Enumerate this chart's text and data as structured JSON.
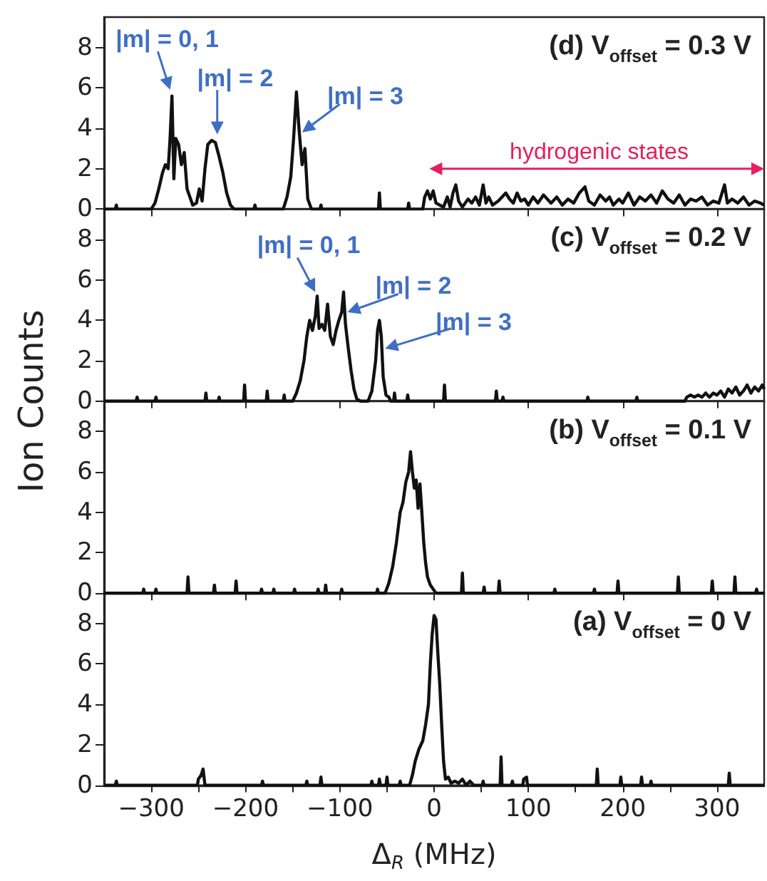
{
  "chart_data": [
    {
      "type": "line",
      "title": "(d) V$_{offset}$ = 0.3 V",
      "xlim": [
        -350,
        350
      ],
      "ylim": [
        0,
        9.5
      ],
      "yticks": [
        0,
        2,
        4,
        6,
        8
      ],
      "tick_labels": "y",
      "xticks": [
        {
          "value": -300,
          "label": null
        },
        {
          "value": -200,
          "label": null
        },
        {
          "value": -100,
          "label": null
        },
        {
          "value": 0,
          "label": null
        },
        {
          "value": 100,
          "label": null
        },
        {
          "value": 200,
          "label": null
        },
        {
          "value": 300,
          "label": null
        }
      ],
      "annotations": [
        {
          "text": "|m| = 0, 1",
          "x": -278,
          "y": 5.6
        },
        {
          "text": "|m| = 2",
          "x": -230,
          "y": 3.4
        },
        {
          "text": "|m| = 3",
          "x": -141,
          "y": 3.6
        },
        "hydrogenic states"
      ],
      "series": [
        {
          "color": "#111111",
          "x": [
            -350,
            -338,
            -337,
            -336,
            -300,
            -296,
            -292,
            -288,
            -285,
            -282,
            -280,
            -278,
            -276,
            -274,
            -271,
            -268,
            -265,
            -262,
            -259,
            -256,
            -252,
            -249,
            -246,
            -243,
            -240,
            -236,
            -232,
            -228,
            -224,
            -220,
            -216,
            -212,
            -191,
            -190,
            -189,
            -160,
            -156,
            -152,
            -149,
            -146,
            -143,
            -140,
            -137,
            -134,
            -130,
            -121,
            -120,
            -119,
            -59,
            -58,
            -57,
            -28,
            -27,
            -26,
            -12,
            -10,
            -7,
            -4,
            -1,
            2,
            6,
            10,
            14,
            17,
            20,
            23,
            26,
            30,
            36,
            40,
            44,
            48,
            52,
            55,
            58,
            62,
            68,
            72,
            76,
            80,
            84,
            88,
            92,
            96,
            100,
            105,
            110,
            116,
            120,
            124,
            130,
            136,
            142,
            148,
            154,
            160,
            164,
            170,
            176,
            182,
            186,
            190,
            196,
            200,
            206,
            212,
            218,
            224,
            230,
            236,
            242,
            248,
            254,
            260,
            266,
            272,
            278,
            284,
            290,
            296,
            302,
            308,
            311,
            316,
            322,
            328,
            334,
            340,
            346,
            350
          ],
          "values": [
            0,
            0,
            0.2,
            0,
            0,
            0.3,
            1,
            1.8,
            2.2,
            2,
            3.5,
            5.6,
            1.5,
            3.5,
            3.2,
            2.2,
            2.8,
            1,
            0.6,
            0.2,
            0.3,
            1,
            0.4,
            2,
            3.2,
            3.4,
            3.3,
            2.6,
            1.8,
            0.8,
            0.2,
            0,
            0,
            0.2,
            0,
            0,
            0.6,
            1.6,
            3.5,
            5.8,
            3.8,
            2.2,
            3,
            0.5,
            0,
            0,
            0.2,
            0,
            0,
            0.8,
            0,
            0,
            0.3,
            0,
            0,
            0.6,
            0.9,
            0.5,
            0.9,
            0.3,
            0.2,
            0.1,
            0.6,
            0.1,
            0.8,
            1.2,
            0.4,
            0.1,
            0.5,
            0.3,
            0.6,
            0.2,
            1.2,
            0.3,
            0.6,
            0.2,
            0.4,
            0.6,
            0.8,
            0.5,
            0.3,
            0.8,
            0.4,
            0.5,
            0.2,
            0.6,
            0.3,
            0.7,
            0.5,
            0.3,
            0.6,
            0.2,
            0.5,
            0.3,
            0.8,
            1.1,
            0.4,
            0.2,
            0.7,
            0.4,
            0.6,
            0.2,
            0.5,
            0.3,
            0.8,
            0.2,
            0.6,
            0.4,
            0.7,
            0.3,
            0.9,
            0.5,
            0.3,
            0.7,
            0.2,
            0.5,
            0.4,
            0.6,
            0.2,
            0.4,
            0.3,
            1.2,
            0.3,
            0.5,
            0.3,
            0.6,
            0.2,
            0.4,
            0.3,
            0.2
          ]
        }
      ]
    },
    {
      "type": "line",
      "title": "(c) V$_{offset}$ = 0.2 V",
      "ylabel": "Ion Counts",
      "xlim": [
        -350,
        350
      ],
      "ylim": [
        0,
        9.5
      ],
      "yticks": [
        0,
        2,
        4,
        6,
        8
      ],
      "tick_labels": "y",
      "xticks": [
        {
          "value": -300,
          "label": null
        },
        {
          "value": -200,
          "label": null
        },
        {
          "value": -100,
          "label": null
        },
        {
          "value": 0,
          "label": null
        },
        {
          "value": 100,
          "label": null
        },
        {
          "value": 200,
          "label": null
        },
        {
          "value": 300,
          "label": null
        }
      ],
      "annotations": [
        {
          "text": "|m| = 0, 1",
          "x": -124,
          "y": 5.2
        },
        {
          "text": "|m| = 2",
          "x": -94,
          "y": 4.2
        },
        {
          "text": "|m| = 3",
          "x": -56,
          "y": 2.5
        }
      ],
      "series": [
        {
          "color": "#111111",
          "x": [
            -350,
            -316,
            -315,
            -314,
            -296,
            -295,
            -294,
            -243,
            -242,
            -241,
            -229,
            -228,
            -227,
            -202,
            -201,
            -200,
            -178,
            -177,
            -176,
            -160,
            -159,
            -158,
            -150,
            -146,
            -142,
            -138,
            -135,
            -132,
            -129,
            -126,
            -124,
            -122,
            -119,
            -116,
            -113,
            -110,
            -107,
            -104,
            -101,
            -98,
            -96,
            -94,
            -91,
            -88,
            -85,
            -82,
            -78,
            -70,
            -66,
            -62,
            -60,
            -58,
            -56,
            -54,
            -51,
            -48,
            -46,
            -43,
            -42,
            -41,
            -29,
            -28,
            -27,
            10,
            11,
            12,
            65,
            66,
            67,
            72,
            73,
            74,
            162,
            163,
            164,
            214,
            215,
            216,
            266,
            268,
            272,
            276,
            280,
            284,
            288,
            292,
            296,
            300,
            304,
            308,
            312,
            316,
            320,
            324,
            328,
            332,
            336,
            340,
            344,
            348,
            350
          ],
          "values": [
            0,
            0,
            0.2,
            0,
            0,
            0.2,
            0,
            0,
            0.4,
            0,
            0,
            0.2,
            0,
            0,
            0.8,
            0,
            0,
            0.5,
            0,
            0,
            0.3,
            0,
            0,
            0.4,
            1,
            2,
            3.2,
            4,
            3.5,
            4.2,
            5.2,
            3.6,
            3.8,
            3.5,
            4.8,
            3.2,
            2.8,
            3.5,
            4,
            4.4,
            5.4,
            3.8,
            2.6,
            1.5,
            0.6,
            0.1,
            0,
            0,
            0.5,
            2,
            3.5,
            4,
            3.2,
            1.2,
            0.3,
            0.2,
            0,
            0,
            0.4,
            0,
            0,
            0.3,
            0,
            0,
            0.8,
            0,
            0,
            0.5,
            0,
            0,
            0.2,
            0,
            0,
            0.2,
            0,
            0,
            0.2,
            0,
            0,
            0.2,
            0.3,
            0.2,
            0.3,
            0.2,
            0.4,
            0.2,
            0.4,
            0.3,
            0.5,
            0.2,
            0.6,
            0.4,
            0.7,
            0.3,
            0.5,
            0.8,
            0.4,
            0.7,
            0.5,
            0.8,
            0.6
          ]
        }
      ]
    },
    {
      "type": "line",
      "title": "(b) V$_{offset}$ = 0.1 V",
      "xlim": [
        -350,
        350
      ],
      "ylim": [
        0,
        9.5
      ],
      "yticks": [
        0,
        2,
        4,
        6,
        8
      ],
      "tick_labels": "y",
      "xticks": [
        {
          "value": -300,
          "label": null
        },
        {
          "value": -200,
          "label": null
        },
        {
          "value": -100,
          "label": null
        },
        {
          "value": 0,
          "label": null
        },
        {
          "value": 100,
          "label": null
        },
        {
          "value": 200,
          "label": null
        },
        {
          "value": 300,
          "label": null
        }
      ],
      "series": [
        {
          "color": "#111111",
          "x": [
            -350,
            -309,
            -308,
            -307,
            -296,
            -295,
            -294,
            -262,
            -261,
            -260,
            -234,
            -233,
            -232,
            -211,
            -210,
            -209,
            -184,
            -183,
            -182,
            -171,
            -170,
            -169,
            -149,
            -148,
            -147,
            -124,
            -123,
            -122,
            -116,
            -115,
            -114,
            -99,
            -98,
            -97,
            -61,
            -60,
            -59,
            -52,
            -48,
            -44,
            -40,
            -36,
            -33,
            -30,
            -27,
            -25,
            -23,
            -21,
            -19,
            -17,
            -15,
            -13,
            -11,
            -9,
            -7,
            -4,
            -1,
            2,
            29,
            30,
            31,
            52,
            53,
            54,
            68,
            69,
            70,
            127,
            128,
            129,
            169,
            170,
            171,
            194,
            195,
            196,
            258,
            259,
            260,
            294,
            295,
            296,
            318,
            319,
            320,
            341,
            342,
            343,
            350
          ],
          "values": [
            0,
            0,
            0.2,
            0,
            0,
            0.2,
            0,
            0,
            0.8,
            0,
            0,
            0.4,
            0,
            0,
            0.6,
            0,
            0,
            0.2,
            0,
            0,
            0.2,
            0,
            0,
            0.2,
            0,
            0,
            0.2,
            0,
            0,
            0.4,
            0,
            0,
            0.2,
            0,
            0,
            0.2,
            0,
            0,
            0.5,
            1.3,
            2.5,
            4,
            4.5,
            5.5,
            6,
            7,
            6,
            5.2,
            5.6,
            4.2,
            5.4,
            4,
            2.5,
            1.5,
            0.8,
            0.4,
            0.2,
            0,
            0,
            1,
            0,
            0,
            0.3,
            0,
            0,
            0.6,
            0,
            0,
            0.2,
            0,
            0,
            0.2,
            0,
            0,
            0.6,
            0,
            0,
            0.8,
            0,
            0,
            0.6,
            0,
            0,
            0.8,
            0,
            0,
            0.2,
            0,
            0
          ]
        }
      ]
    },
    {
      "type": "line",
      "title": "(a) V$_{offset}$ = 0 V",
      "xlabel": "Δ$_{R}$ (MHz)",
      "xlim": [
        -350,
        350
      ],
      "ylim": [
        0,
        9.5
      ],
      "yticks": [
        0,
        2,
        4,
        6,
        8
      ],
      "xticks": [
        {
          "value": -300,
          "label": "−300"
        },
        {
          "value": -250,
          "label": null
        },
        {
          "value": -200,
          "label": "−200"
        },
        {
          "value": -150,
          "label": null
        },
        {
          "value": -100,
          "label": "−100"
        },
        {
          "value": -50,
          "label": null
        },
        0,
        {
          "value": 50,
          "label": null
        },
        100,
        {
          "value": 150,
          "label": null
        },
        200,
        {
          "value": 250,
          "label": null
        },
        300
      ],
      "series": [
        {
          "color": "#111111",
          "x": [
            -350,
            -338,
            -337,
            -336,
            -251,
            -250,
            -247,
            -245,
            -243,
            -183,
            -182,
            -181,
            -136,
            -135,
            -134,
            -121,
            -120,
            -119,
            -67,
            -66,
            -65,
            -59,
            -58,
            -57,
            -51,
            -50,
            -49,
            -37,
            -36,
            -35,
            -26,
            -23,
            -20,
            -16,
            -12,
            -9,
            -6,
            -4,
            -2,
            0,
            2,
            4,
            6,
            8,
            10,
            12,
            15,
            18,
            22,
            26,
            30,
            34,
            38,
            42,
            51,
            52,
            53,
            70,
            71,
            72,
            82,
            83,
            84,
            94,
            95,
            98,
            99,
            172,
            173,
            174,
            197,
            198,
            199,
            219,
            220,
            221,
            229,
            230,
            231,
            312,
            313,
            314,
            350
          ],
          "values": [
            0,
            0,
            0.2,
            0,
            0,
            0.3,
            0.5,
            0.8,
            0,
            0,
            0.2,
            0,
            0,
            0.2,
            0,
            0,
            0.4,
            0,
            0,
            0.2,
            0,
            0,
            0.3,
            0,
            0,
            0.4,
            0,
            0,
            0.2,
            0,
            0,
            0.5,
            1.2,
            1.8,
            2.2,
            3,
            4,
            6,
            7.5,
            8.4,
            8.2,
            6.5,
            5,
            3,
            1.2,
            0.3,
            0.4,
            0.1,
            0.2,
            0.1,
            0.3,
            0,
            0.2,
            0,
            0,
            0.2,
            0,
            0,
            1.4,
            0,
            0,
            0.2,
            0,
            0,
            0.3,
            0.4,
            0,
            0,
            0.8,
            0,
            0,
            0.4,
            0,
            0,
            0.4,
            0,
            0,
            0.2,
            0,
            0,
            0.6,
            0,
            0
          ]
        }
      ]
    }
  ]
}
